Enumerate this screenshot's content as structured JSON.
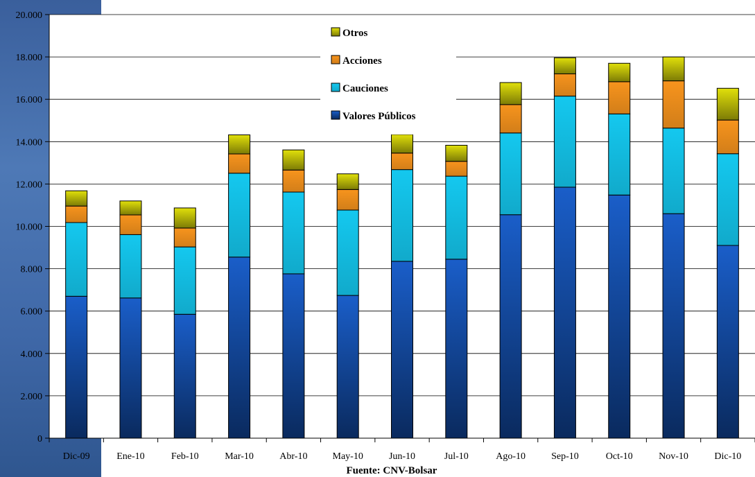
{
  "chart_data": {
    "type": "bar",
    "stacked": true,
    "categories": [
      "Dic-09",
      "Ene-10",
      "Feb-10",
      "Mar-10",
      "Abr-10",
      "May-10",
      "Jun-10",
      "Jul-10",
      "Ago-10",
      "Sep-10",
      "Oct-10",
      "Nov-10",
      "Dic-10"
    ],
    "series": [
      {
        "name": "Valores Públicos",
        "color": "#1a5ec9",
        "values": [
          6700,
          6620,
          5850,
          8550,
          7760,
          6740,
          8350,
          8450,
          10550,
          11850,
          11480,
          10600,
          9100
        ]
      },
      {
        "name": "Cauciones",
        "color": "#14c8ef",
        "values": [
          3480,
          2990,
          3180,
          3960,
          3860,
          4030,
          4330,
          3920,
          3860,
          4300,
          3830,
          4040,
          4330
        ]
      },
      {
        "name": "Acciones",
        "color": "#f7941d",
        "values": [
          780,
          930,
          890,
          910,
          1040,
          970,
          780,
          700,
          1340,
          1050,
          1520,
          2230,
          1590
        ]
      },
      {
        "name": "Otros",
        "color": "#e1e00a",
        "values": [
          720,
          660,
          950,
          900,
          950,
          740,
          880,
          760,
          1040,
          760,
          870,
          1130,
          1500
        ]
      }
    ],
    "yticks": [
      "0",
      "2.000",
      "4.000",
      "6.000",
      "8.000",
      "10.000",
      "12.000",
      "14.000",
      "16.000",
      "18.000",
      "20.000"
    ],
    "ylim": [
      0,
      20000
    ],
    "grid": true,
    "legend_position": "top-center",
    "legend_order": [
      "Otros",
      "Acciones",
      "Cauciones",
      "Valores Públicos"
    ],
    "footer": "Fuente: CNV-Bolsar"
  }
}
